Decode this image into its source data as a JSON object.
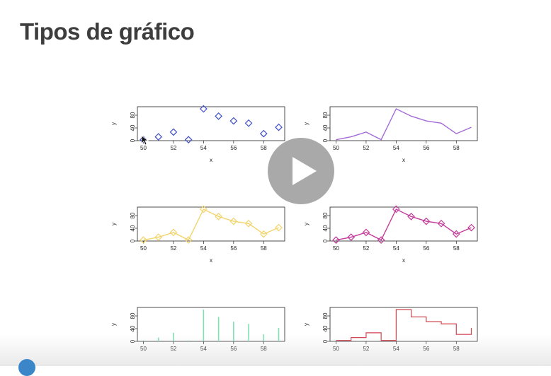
{
  "title": "Tipos de gráfico",
  "chart_data": [
    {
      "type": "scatter",
      "xlabel": "x",
      "ylabel": "y",
      "x": [
        50,
        51,
        52,
        53,
        54,
        55,
        56,
        57,
        58,
        59
      ],
      "values": [
        3,
        12,
        27,
        3,
        100,
        77,
        62,
        55,
        22,
        42
      ],
      "xlim": [
        49.6,
        59.4
      ],
      "ylim": [
        0,
        100
      ],
      "xticks": [
        50,
        52,
        54,
        56,
        58
      ],
      "yticks": [
        0,
        40,
        80
      ],
      "color": "#3f4fc9",
      "marker": "diamond",
      "line": false
    },
    {
      "type": "line",
      "xlabel": "x",
      "ylabel": "y",
      "x": [
        50,
        51,
        52,
        53,
        54,
        55,
        56,
        57,
        58,
        59
      ],
      "values": [
        3,
        12,
        27,
        3,
        100,
        77,
        62,
        55,
        22,
        42
      ],
      "xlim": [
        49.6,
        59.4
      ],
      "ylim": [
        0,
        100
      ],
      "xticks": [
        50,
        52,
        54,
        56,
        58
      ],
      "yticks": [
        0,
        40,
        80
      ],
      "color": "#a26ad6",
      "marker": "none",
      "line": true
    },
    {
      "type": "line",
      "xlabel": "x",
      "ylabel": "y",
      "x": [
        50,
        51,
        52,
        53,
        54,
        55,
        56,
        57,
        58,
        59
      ],
      "values": [
        3,
        12,
        27,
        3,
        100,
        77,
        62,
        55,
        22,
        42
      ],
      "xlim": [
        49.6,
        59.4
      ],
      "ylim": [
        0,
        100
      ],
      "xticks": [
        50,
        52,
        54,
        56,
        58
      ],
      "yticks": [
        0,
        40,
        80
      ],
      "color": "#f2d46b",
      "marker": "diamond",
      "line": true
    },
    {
      "type": "line",
      "xlabel": "x",
      "ylabel": "y",
      "x": [
        50,
        51,
        52,
        53,
        54,
        55,
        56,
        57,
        58,
        59
      ],
      "values": [
        3,
        12,
        27,
        3,
        100,
        77,
        62,
        55,
        22,
        42
      ],
      "xlim": [
        49.6,
        59.4
      ],
      "ylim": [
        0,
        100
      ],
      "xticks": [
        50,
        52,
        54,
        56,
        58
      ],
      "yticks": [
        0,
        40,
        80
      ],
      "color": "#c33a9a",
      "marker": "diamond",
      "line": true
    },
    {
      "type": "bar",
      "xlabel": "",
      "ylabel": "y",
      "x": [
        50,
        51,
        52,
        53,
        54,
        55,
        56,
        57,
        58,
        59
      ],
      "values": [
        3,
        12,
        27,
        3,
        100,
        77,
        62,
        55,
        22,
        42
      ],
      "xlim": [
        49.6,
        59.4
      ],
      "ylim": [
        0,
        100
      ],
      "xticks": [
        50,
        52,
        54,
        56,
        58
      ],
      "yticks": [
        0,
        40,
        80
      ],
      "color": "#7fe0b0",
      "marker": "none",
      "line": false
    },
    {
      "type": "line",
      "xlabel": "",
      "ylabel": "y",
      "x": [
        50,
        51,
        52,
        53,
        54,
        55,
        56,
        57,
        58,
        59
      ],
      "values": [
        3,
        12,
        27,
        3,
        100,
        77,
        62,
        55,
        22,
        42
      ],
      "xlim": [
        49.6,
        59.4
      ],
      "ylim": [
        0,
        100
      ],
      "xticks": [
        50,
        52,
        54,
        56,
        58
      ],
      "yticks": [
        0,
        40,
        80
      ],
      "color": "#d04550",
      "marker": "none",
      "line": "step"
    }
  ]
}
